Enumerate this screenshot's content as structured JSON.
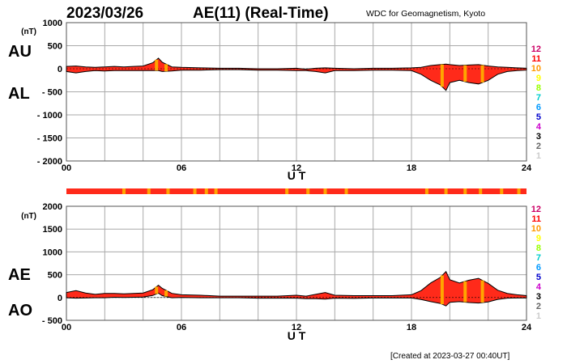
{
  "header": {
    "date": "2023/03/26",
    "title": "AE(11) (Real-Time)",
    "source": "WDC for Geomagnetism, Kyoto"
  },
  "footer": {
    "created": "[Created at 2023-03-27 00:40UT]"
  },
  "colors": {
    "fill": "#ff2a1a",
    "highlight": "#ffa500",
    "grid": "#aaaaaa",
    "levels": [
      "#cc0066",
      "#ff0000",
      "#ff9900",
      "#ffff00",
      "#99ff00",
      "#00cccc",
      "#0099ff",
      "#0000cc",
      "#cc00cc",
      "#000000",
      "#666666",
      "#cccccc"
    ]
  },
  "station_levels": [
    "12",
    "11",
    "10",
    "9",
    "8",
    "7",
    "6",
    "5",
    "4",
    "3",
    "2",
    "1"
  ],
  "chart_data": [
    {
      "type": "area",
      "panel": "AU/AL",
      "labels_upper": "AU",
      "labels_lower": "AL",
      "ylabel": "(nT)",
      "xlabel": "U T",
      "xticks": [
        "00",
        "06",
        "12",
        "18",
        "24"
      ],
      "ylim": [
        -2000,
        1000
      ],
      "yticks": [
        "1000",
        "500",
        "0",
        "- 500",
        "- 1000",
        "- 1500",
        "- 2000"
      ],
      "grid": true,
      "au": {
        "x": [
          0,
          0.5,
          1,
          1.5,
          2,
          2.5,
          3,
          3.5,
          4,
          4.5,
          4.8,
          5,
          5.5,
          6,
          7,
          8,
          9,
          10,
          11,
          12,
          12.5,
          13,
          13.5,
          14,
          15,
          16,
          17,
          18,
          18.5,
          19,
          19.5,
          19.8,
          20,
          20.5,
          21,
          21.5,
          22,
          22.5,
          23,
          23.5,
          24
        ],
        "values": [
          50,
          60,
          40,
          30,
          40,
          50,
          40,
          50,
          60,
          130,
          230,
          140,
          40,
          30,
          20,
          10,
          10,
          0,
          0,
          10,
          -10,
          10,
          20,
          10,
          0,
          10,
          10,
          20,
          30,
          70,
          90,
          100,
          90,
          70,
          80,
          90,
          60,
          40,
          30,
          20,
          10
        ]
      },
      "al": {
        "x": [
          0,
          0.5,
          1,
          1.5,
          2,
          2.5,
          3,
          3.5,
          4,
          4.5,
          4.8,
          5,
          5.5,
          6,
          7,
          8,
          9,
          10,
          11,
          12,
          12.5,
          13,
          13.5,
          14,
          15,
          16,
          17,
          18,
          18.5,
          19,
          19.5,
          19.8,
          20,
          20.5,
          21,
          21.5,
          22,
          22.5,
          23,
          23.5,
          24
        ],
        "values": [
          -60,
          -90,
          -60,
          -40,
          -50,
          -40,
          -40,
          -40,
          -40,
          -40,
          -40,
          -60,
          -50,
          -30,
          -30,
          -20,
          -20,
          -30,
          -30,
          -40,
          -40,
          -60,
          -90,
          -40,
          -40,
          -30,
          -30,
          -40,
          -120,
          -250,
          -350,
          -470,
          -300,
          -250,
          -300,
          -330,
          -250,
          -120,
          -60,
          -40,
          -30
        ]
      },
      "highlights_x": [
        4.7,
        5.2,
        19.6,
        20.8,
        21.7
      ]
    },
    {
      "type": "area",
      "panel": "AE/AO",
      "labels_upper": "AE",
      "labels_lower": "AO",
      "ylabel": "(nT)",
      "xlabel": "U T",
      "xticks": [
        "00",
        "06",
        "12",
        "18",
        "24"
      ],
      "ylim": [
        -500,
        2000
      ],
      "yticks": [
        "2000",
        "1500",
        "1000",
        "500",
        "0",
        "- 500"
      ],
      "grid": true,
      "ae": {
        "x": [
          0,
          0.5,
          1,
          1.5,
          2,
          2.5,
          3,
          3.5,
          4,
          4.5,
          4.8,
          5,
          5.5,
          6,
          7,
          8,
          9,
          10,
          11,
          12,
          12.5,
          13,
          13.5,
          14,
          15,
          16,
          17,
          18,
          18.5,
          19,
          19.5,
          19.8,
          20,
          20.5,
          21,
          21.5,
          22,
          22.5,
          23,
          23.5,
          24
        ],
        "values": [
          110,
          150,
          100,
          70,
          90,
          90,
          80,
          90,
          100,
          170,
          270,
          200,
          90,
          60,
          50,
          30,
          30,
          30,
          30,
          50,
          30,
          70,
          110,
          50,
          40,
          40,
          40,
          60,
          150,
          320,
          440,
          570,
          390,
          320,
          380,
          420,
          310,
          160,
          90,
          60,
          40
        ]
      },
      "ao": {
        "x": [
          0,
          0.5,
          1,
          1.5,
          2,
          2.5,
          3,
          3.5,
          4,
          4.5,
          4.8,
          5,
          5.5,
          6,
          7,
          8,
          9,
          10,
          11,
          12,
          12.5,
          13,
          13.5,
          14,
          15,
          16,
          17,
          18,
          18.5,
          19,
          19.5,
          19.8,
          20,
          20.5,
          21,
          21.5,
          22,
          22.5,
          23,
          23.5,
          24
        ],
        "values": [
          -5,
          -15,
          -10,
          -5,
          -5,
          5,
          0,
          5,
          10,
          45,
          95,
          40,
          -5,
          0,
          -5,
          -5,
          -5,
          -15,
          -15,
          -15,
          -25,
          -25,
          -35,
          -15,
          -20,
          -10,
          -10,
          -10,
          -45,
          -90,
          -130,
          -185,
          -105,
          -90,
          -110,
          -120,
          -95,
          -40,
          -15,
          -10,
          -10
        ]
      },
      "highlights_x": [
        4.7,
        5.2,
        19.6,
        20.8,
        21.7
      ]
    }
  ],
  "status_bar": {
    "color": "#ff2a1a",
    "highlights_x": [
      3.0,
      4.3,
      5.3,
      6.7,
      7.3,
      7.8,
      11.5,
      12.6,
      13.5,
      14.6,
      18.8,
      19.8,
      20.8,
      21.6,
      22.7,
      23.6
    ]
  }
}
